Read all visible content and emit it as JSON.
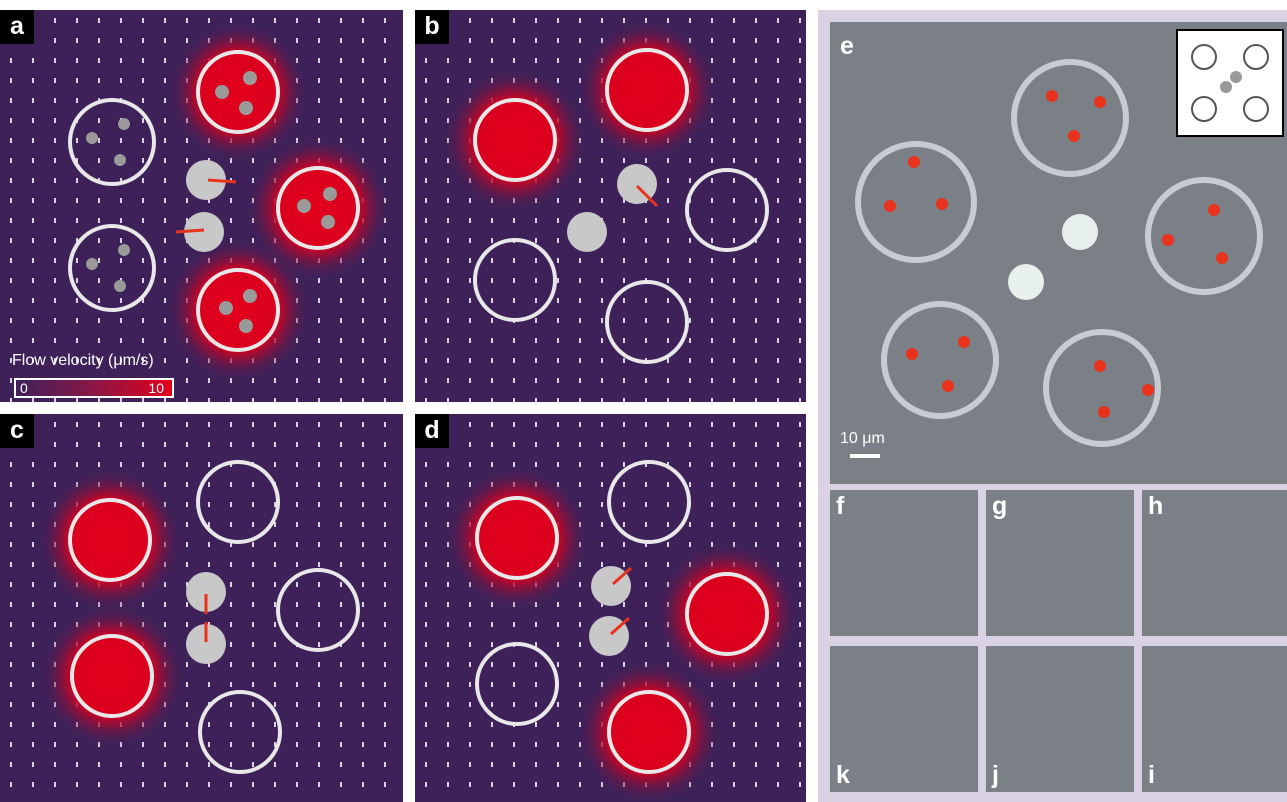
{
  "panels": {
    "a": {
      "label": "a"
    },
    "b": {
      "label": "b"
    },
    "c": {
      "label": "c"
    },
    "d": {
      "label": "d"
    },
    "e": {
      "label": "e"
    }
  },
  "legend": {
    "title": "Flow velocity (μm/s)",
    "min": "0",
    "max": "10"
  },
  "scale_bar": {
    "label": "10 μm"
  },
  "sequence": [
    "f",
    "g",
    "h",
    "i",
    "j",
    "k"
  ],
  "colors": {
    "background": "#3e2159",
    "high_flow": "#e3001c",
    "arrow": "#e8321c",
    "microscope": "#7a8085"
  }
}
